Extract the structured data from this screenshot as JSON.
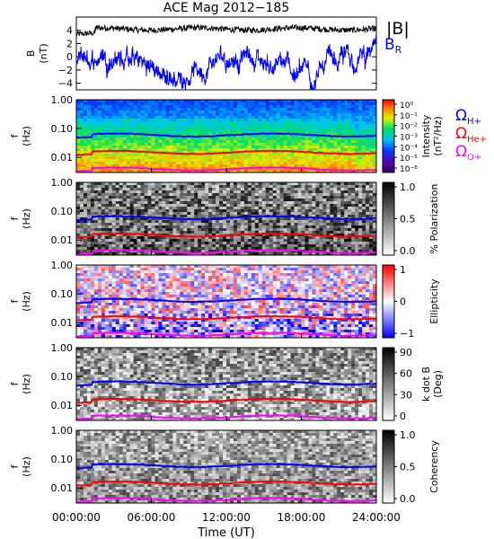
{
  "chart_data": {
    "type": "multi-panel spectrogram",
    "title": "ACE Mag 2012−185",
    "xlabel": "Time (UT)",
    "x_ticks": [
      "00:00:00",
      "06:00:00",
      "12:00:00",
      "18:00:00",
      "24:00:00"
    ],
    "x_range_hours": [
      0,
      24
    ],
    "panel_b": {
      "type": "line",
      "ylabel": "B",
      "yunit": "(nT)",
      "y_ticks": [
        "4",
        "2",
        "0",
        "−2",
        "−4"
      ],
      "ylim": [
        -5,
        6
      ],
      "series": [
        {
          "name": "|B|",
          "color": "#000000",
          "approx_level_nT": 4.2
        },
        {
          "name": "B_R",
          "color": "#0000ff",
          "approx_range_nT": [
            -5,
            3
          ]
        }
      ]
    },
    "freq_ticks": [
      "1.00",
      "0.10",
      "0.01"
    ],
    "freq_ylabel": "f",
    "freq_yunit": "(Hz)",
    "freq_range_hz": [
      0.003,
      1.0
    ],
    "gyro_lines": [
      {
        "name": "ΩH+",
        "label_main": "Ω",
        "label_sub": "H+",
        "color": "#0000ff",
        "approx_hz": 0.06
      },
      {
        "name": "ΩHe+",
        "label_main": "Ω",
        "label_sub": "He+",
        "color": "#ff0000",
        "approx_hz": 0.015
      },
      {
        "name": "ΩO+",
        "label_main": "Ω",
        "label_sub": "O+",
        "color": "#ff00ff",
        "approx_hz": 0.004
      }
    ],
    "spectral_panels": [
      {
        "name": "Intensity",
        "colorbar_label_lines": [
          "Intensity",
          "(nT²/Hz)"
        ],
        "colorbar_ticks": [
          "10⁰",
          "10⁻¹",
          "10⁻²",
          "10⁻³",
          "10⁻⁴",
          "10⁻⁵",
          "10⁻⁶"
        ],
        "colormap": "rainbow",
        "show_gyro_labels": true
      },
      {
        "name": "% Polarization",
        "colorbar_label_lines": [
          "% Polarization"
        ],
        "colorbar_ticks": [
          "1.0",
          "0.5",
          "0.0"
        ],
        "colormap": "gray"
      },
      {
        "name": "Ellipticity",
        "colorbar_label_lines": [
          "Ellipticity"
        ],
        "colorbar_ticks": [
          "1",
          "0",
          "−1"
        ],
        "colormap": "bwr"
      },
      {
        "name": "k dot B",
        "colorbar_label_lines": [
          "k dot B",
          "(Deg)"
        ],
        "colorbar_ticks": [
          "90",
          "60",
          "30",
          "0"
        ],
        "colormap": "gray"
      },
      {
        "name": "Coherency",
        "colorbar_label_lines": [
          "Coherency"
        ],
        "colorbar_ticks": [
          "1.0",
          "0.5",
          "0.0"
        ],
        "colormap": "gray"
      }
    ]
  }
}
